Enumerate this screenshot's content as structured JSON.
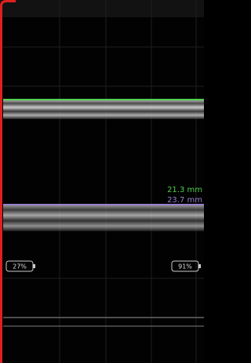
{
  "measurements": [
    {
      "label": "21.3 mm",
      "color": "#4fd04f"
    },
    {
      "label": "23.7 mm",
      "color": "#9a7fd0"
    }
  ],
  "batteries": {
    "left": "27%",
    "right": "91%"
  }
}
